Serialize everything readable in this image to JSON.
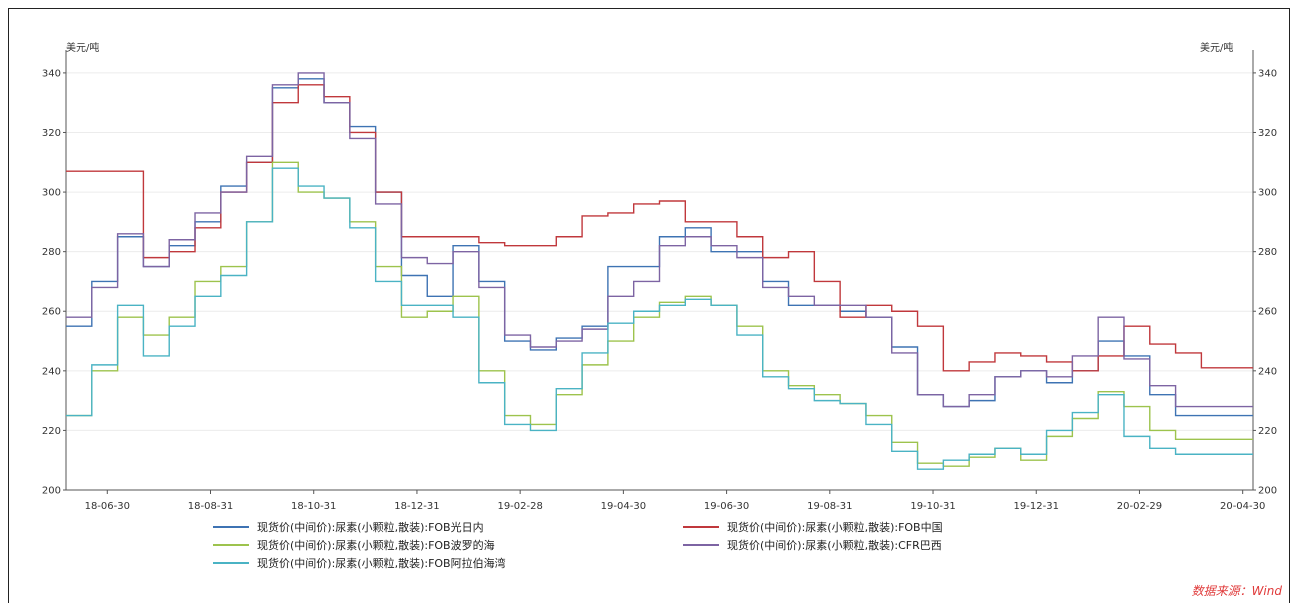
{
  "chart_data": {
    "type": "line",
    "left_unit_label": "美元/吨",
    "right_unit_label": "美元/吨",
    "ylim": [
      200,
      345
    ],
    "yticks": [
      200,
      220,
      240,
      260,
      280,
      300,
      320,
      340
    ],
    "x_tick_labels": [
      "18-06-30",
      "18-08-31",
      "18-10-31",
      "18-12-31",
      "19-02-28",
      "19-04-30",
      "19-06-30",
      "19-08-31",
      "19-10-31",
      "19-12-31",
      "20-02-29",
      "20-04-30"
    ],
    "x": [
      0,
      0.5,
      1,
      1.5,
      2,
      2.5,
      3,
      3.5,
      4,
      4.5,
      5,
      5.5,
      6,
      6.5,
      7,
      7.5,
      8,
      8.5,
      9,
      9.5,
      10,
      10.5,
      11,
      11.5,
      12,
      12.5,
      13,
      13.5,
      14,
      14.5,
      15,
      15.5,
      16,
      16.5,
      17,
      17.5,
      18,
      18.5,
      19,
      19.5,
      20,
      20.5,
      21,
      21.5,
      22,
      22.5
    ],
    "grid": true,
    "legend_position": "bottom",
    "series": [
      {
        "name": "现货价(中间价):尿素(小颗粒,散装):FOB光日内",
        "color": "#3e73b3",
        "values": [
          255,
          270,
          285,
          275,
          282,
          290,
          302,
          310,
          335,
          338,
          330,
          322,
          300,
          272,
          265,
          282,
          270,
          250,
          247,
          251,
          255,
          275,
          275,
          285,
          288,
          280,
          280,
          270,
          262,
          262,
          260,
          258,
          248,
          232,
          228,
          230,
          238,
          240,
          236,
          240,
          250,
          245,
          232,
          225,
          225,
          225
        ]
      },
      {
        "name": "现货价(中间价):尿素(小颗粒,散装):FOB中国",
        "color": "#c0383c",
        "values": [
          307,
          307,
          307,
          278,
          280,
          288,
          300,
          310,
          330,
          336,
          332,
          320,
          300,
          285,
          285,
          285,
          283,
          282,
          282,
          285,
          292,
          293,
          296,
          297,
          290,
          290,
          285,
          278,
          280,
          270,
          258,
          262,
          260,
          255,
          240,
          243,
          246,
          245,
          243,
          240,
          245,
          255,
          249,
          246,
          241,
          241
        ]
      },
      {
        "name": "现货价(中间价):尿素(小颗粒,散装):FOB波罗的海",
        "color": "#9dc34d",
        "values": [
          225,
          240,
          258,
          252,
          258,
          270,
          275,
          290,
          310,
          300,
          298,
          290,
          275,
          258,
          260,
          265,
          240,
          225,
          222,
          232,
          242,
          250,
          258,
          263,
          265,
          262,
          255,
          240,
          235,
          232,
          229,
          225,
          216,
          209,
          208,
          211,
          214,
          210,
          218,
          224,
          233,
          228,
          220,
          217,
          217,
          217
        ]
      },
      {
        "name": "现货价(中间价):尿素(小颗粒,散装):CFR巴西",
        "color": "#7d64a3",
        "values": [
          258,
          268,
          286,
          275,
          284,
          293,
          300,
          312,
          336,
          340,
          330,
          318,
          296,
          278,
          276,
          280,
          268,
          252,
          248,
          250,
          254,
          265,
          270,
          282,
          285,
          282,
          278,
          268,
          265,
          262,
          262,
          258,
          246,
          232,
          228,
          232,
          238,
          240,
          238,
          245,
          258,
          244,
          235,
          228,
          228,
          228
        ]
      },
      {
        "name": "现货价(中间价):尿素(小颗粒,散装):FOB阿拉伯海湾",
        "color": "#4ab3c4",
        "values": [
          225,
          242,
          262,
          245,
          255,
          265,
          272,
          290,
          308,
          302,
          298,
          288,
          270,
          262,
          262,
          258,
          236,
          222,
          220,
          234,
          246,
          256,
          260,
          262,
          264,
          262,
          252,
          238,
          234,
          230,
          229,
          222,
          213,
          207,
          210,
          212,
          214,
          212,
          220,
          226,
          232,
          218,
          214,
          212,
          212,
          212
        ]
      }
    ]
  },
  "source_text": "数据来源：Wind"
}
